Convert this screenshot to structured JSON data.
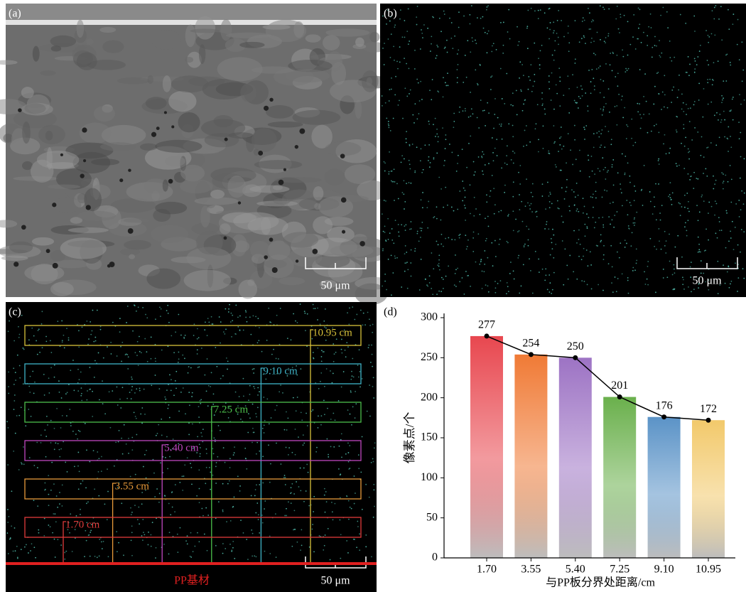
{
  "panels": {
    "a": {
      "label": "(a)",
      "scale_bar": "50 μm"
    },
    "b": {
      "label": "(b)",
      "scale_bar": "50 μm"
    },
    "c": {
      "label": "(c)",
      "scale_bar": "50 μm",
      "base_label": "PP基材",
      "annotations": [
        {
          "label": "10.95 cm",
          "color": "#d8c23a"
        },
        {
          "label": "9.10 cm",
          "color": "#3fb4c8"
        },
        {
          "label": "7.25 cm",
          "color": "#4cc04c"
        },
        {
          "label": "5.40 cm",
          "color": "#c048c0"
        },
        {
          "label": "3.55 cm",
          "color": "#e89a3a"
        },
        {
          "label": "1.70 cm",
          "color": "#e03a3a"
        }
      ]
    }
  },
  "chart_data": {
    "type": "bar",
    "label": "(d)",
    "xlabel": "与PP板分界处距离/cm",
    "ylabel": "像素点/个",
    "categories": [
      "1.70",
      "3.55",
      "5.40",
      "7.25",
      "9.10",
      "10.95"
    ],
    "values": [
      277,
      254,
      250,
      201,
      176,
      172
    ],
    "colors": [
      "#e8474f",
      "#f07a35",
      "#9d73c4",
      "#6ab04c",
      "#5b93c7",
      "#f2c96b"
    ],
    "line_color": "#000000",
    "ylim": [
      0,
      300
    ],
    "yticks": [
      0,
      50,
      100,
      150,
      200,
      250,
      300
    ]
  }
}
